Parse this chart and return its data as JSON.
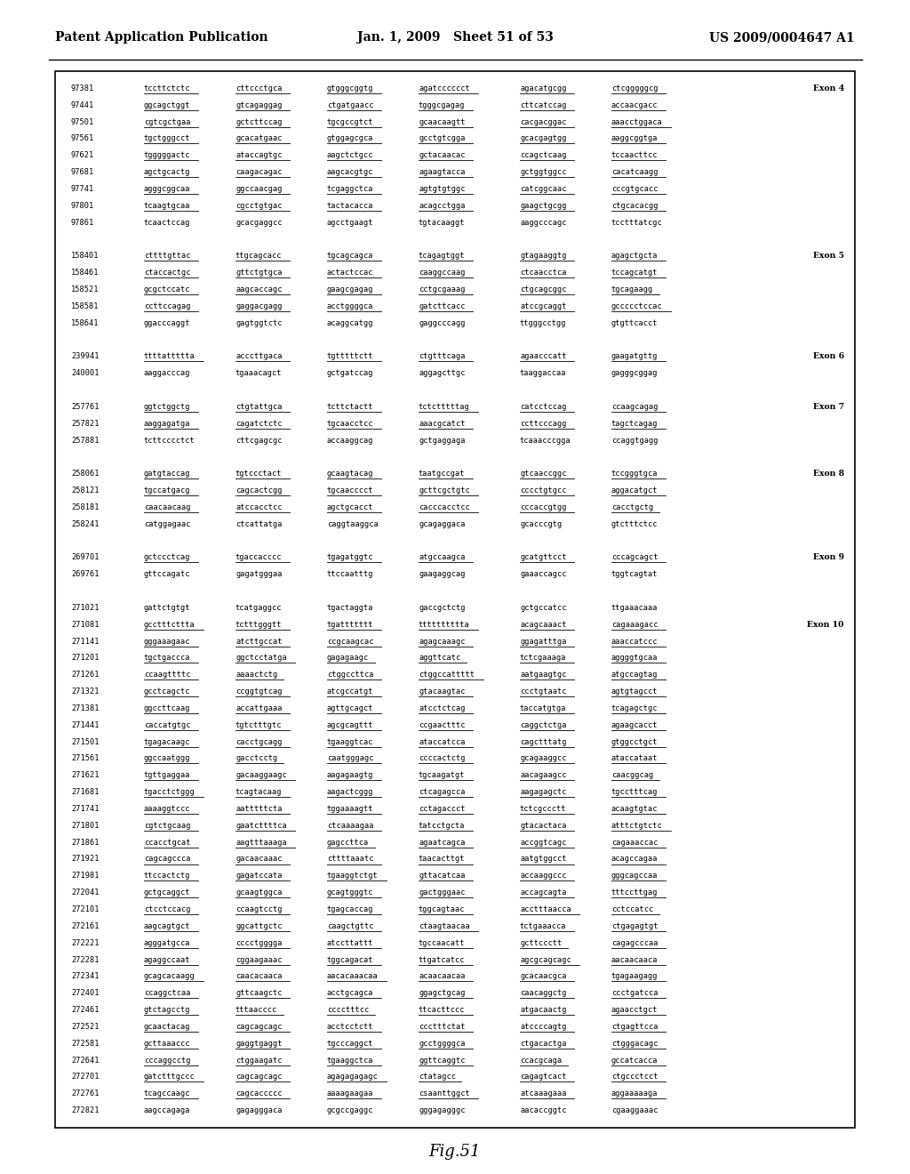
{
  "header_left": "Patent Application Publication",
  "header_center": "Jan. 1, 2009   Sheet 51 of 53",
  "header_right": "US 2009/0004647 A1",
  "footer": "Fig.51",
  "background_color": "#ffffff",
  "border_color": "#000000",
  "text_color": "#000000",
  "content_lines": [
    {
      "num": "97381",
      "seq1": "tccttctctc",
      "seq2": "cttccctgca",
      "seq3": "gtgggcggtg",
      "seq4": "agatcccccct",
      "seq5": "agacatgcgg",
      "seq6": "ctcgggggcg",
      "exon": "Exon 4",
      "underline": true
    },
    {
      "num": "97441",
      "seq1": "ggcagctggt",
      "seq2": "gtcagaggag",
      "seq3": "ctgatgaacc",
      "seq4": "tgggcgagag",
      "seq5": "cttcatccag",
      "seq6": "accaacgacc",
      "exon": "",
      "underline": true
    },
    {
      "num": "97501",
      "seq1": "cgtcgctgaa",
      "seq2": "gctcttccag",
      "seq3": "tgcgccgtct",
      "seq4": "gcaacaagtt",
      "seq5": "cacgacggac",
      "seq6": "aaacctggaca",
      "exon": "",
      "underline": true
    },
    {
      "num": "97561",
      "seq1": "tgctgggcct",
      "seq2": "gcacatgaac",
      "seq3": "gtggagcgca",
      "seq4": "gcctgtcgga",
      "seq5": "gcacgagtgg",
      "seq6": "aaggcggtga",
      "exon": "",
      "underline": true
    },
    {
      "num": "97621",
      "seq1": "tgggggactc",
      "seq2": "ataccagtgc",
      "seq3": "aagctctgcc",
      "seq4": "gctacaacac",
      "seq5": "ccagctcaag",
      "seq6": "tccaacttcc",
      "exon": "",
      "underline": true
    },
    {
      "num": "97681",
      "seq1": "agctgcactg",
      "seq2": "caagacagac",
      "seq3": "aagcacgtgc",
      "seq4": "agaagtacca",
      "seq5": "gctggtggcc",
      "seq6": "cacatcaagg",
      "exon": "",
      "underline": true
    },
    {
      "num": "97741",
      "seq1": "agggcggcaa",
      "seq2": "ggccaacgag",
      "seq3": "tcgaggctca",
      "seq4": "agtgtgtggc",
      "seq5": "catcggcaac",
      "seq6": "cccgtgcacc",
      "exon": "",
      "underline": true
    },
    {
      "num": "97801",
      "seq1": "tcaagtgcaa",
      "seq2": "cgcctgtgac",
      "seq3": "tactacacca",
      "seq4": "acagcctgga",
      "seq5": "gaagctgcgg",
      "seq6": "ctgcacacgg",
      "exon": "",
      "underline": true
    },
    {
      "num": "97861",
      "seq1": "tcaactccag",
      "seq2": "gcacgaggcc",
      "seq3": "agcctgaagt",
      "seq4": "tgtacaaggt",
      "seq5": "aaggcccagc",
      "seq6": "tcctttatcgc",
      "exon": "",
      "underline": false
    },
    {
      "num": "",
      "seq1": "",
      "seq2": "",
      "seq3": "",
      "seq4": "",
      "seq5": "",
      "seq6": "",
      "exon": "",
      "underline": false
    },
    {
      "num": "158401",
      "seq1": "cttttgttac",
      "seq2": "ttgcagcacc",
      "seq3": "tgcagcagca",
      "seq4": "tcagagtggt",
      "seq5": "gtagaaggtg",
      "seq6": "agagctgcta",
      "exon": "Exon 5",
      "underline": true
    },
    {
      "num": "158461",
      "seq1": "ctaccactgc",
      "seq2": "gttctgtgca",
      "seq3": "actactccac",
      "seq4": "caaggccaag",
      "seq5": "ctcaacctca",
      "seq6": "tccagcatgt",
      "exon": "",
      "underline": true
    },
    {
      "num": "158521",
      "seq1": "gcgctccatc",
      "seq2": "aagcaccagc",
      "seq3": "gaagcgagag",
      "seq4": "cctgcgaaag",
      "seq5": "ctgcagcggc",
      "seq6": "tgcagaagg",
      "exon": "",
      "underline": true
    },
    {
      "num": "158581",
      "seq1": "ccttccagag",
      "seq2": "gaggacgagg",
      "seq3": "acctggggca",
      "seq4": "gatcttcacc",
      "seq5": "atccgcaggt",
      "seq6": "gccccctccac",
      "exon": "",
      "underline": true
    },
    {
      "num": "158641",
      "seq1": "ggacccaggt",
      "seq2": "gagtggtctc",
      "seq3": "acaggcatgg",
      "seq4": "gaggcccagg",
      "seq5": "ttgggcctgg",
      "seq6": "gtgttcacct",
      "exon": "",
      "underline": false
    },
    {
      "num": "",
      "seq1": "",
      "seq2": "",
      "seq3": "",
      "seq4": "",
      "seq5": "",
      "seq6": "",
      "exon": "",
      "underline": false
    },
    {
      "num": "239941",
      "seq1": "ttttattttta",
      "seq2": "acccttgaca",
      "seq3": "tgtttttctt",
      "seq4": "ctgtttcaga",
      "seq5": "agaacccatt",
      "seq6": "gaagatgttg",
      "exon": "Exon 6",
      "underline": true
    },
    {
      "num": "240001",
      "seq1": "aaggacccag",
      "seq2": "tgaaacagct",
      "seq3": "gctgatccag",
      "seq4": "aggagcttgc",
      "seq5": "taaggaccaa",
      "seq6": "gagggcggag",
      "exon": "",
      "underline": false
    },
    {
      "num": "",
      "seq1": "",
      "seq2": "",
      "seq3": "",
      "seq4": "",
      "seq5": "",
      "seq6": "",
      "exon": "",
      "underline": false
    },
    {
      "num": "257761",
      "seq1": "ggtctggctg",
      "seq2": "ctgtattgca",
      "seq3": "tcttctactt",
      "seq4": "tctctttttag",
      "seq5": "catcctccag",
      "seq6": "ccaagcagag",
      "exon": "Exon 7",
      "underline": true
    },
    {
      "num": "257821",
      "seq1": "aaggagatga",
      "seq2": "cagatctctc",
      "seq3": "tgcaacctcc",
      "seq4": "aaacgcatct",
      "seq5": "ccttcccagg",
      "seq6": "tagctcagag",
      "exon": "",
      "underline": true
    },
    {
      "num": "257881",
      "seq1": "tcttcccctct",
      "seq2": "cttcgagcgc",
      "seq3": "accaaggcag",
      "seq4": "gctgaggaga",
      "seq5": "tcaaacccgga",
      "seq6": "ccaggtgagg",
      "exon": "",
      "underline": false
    },
    {
      "num": "",
      "seq1": "",
      "seq2": "",
      "seq3": "",
      "seq4": "",
      "seq5": "",
      "seq6": "",
      "exon": "",
      "underline": false
    },
    {
      "num": "258061",
      "seq1": "gatgtaccag",
      "seq2": "tgtccctact",
      "seq3": "gcaagtacag",
      "seq4": "taatgccgat",
      "seq5": "gtcaaccggc",
      "seq6": "tccgggtgca",
      "exon": "Exon 8",
      "underline": true
    },
    {
      "num": "258121",
      "seq1": "tgccatgacg",
      "seq2": "cagcactcgg",
      "seq3": "tgcaacccct",
      "seq4": "gcttcgctgtc",
      "seq5": "cccctgtgcc",
      "seq6": "aggacatgct",
      "exon": "",
      "underline": true
    },
    {
      "num": "258181",
      "seq1": "caacaacaag",
      "seq2": "atccacctcc",
      "seq3": "agctgcacct",
      "seq4": "cacccacctcc",
      "seq5": "cccaccgtgg",
      "seq6": "cacctgctg",
      "exon": "",
      "underline": true
    },
    {
      "num": "258241",
      "seq1": "catggagaac",
      "seq2": "ctcattatga",
      "seq3": "caggtaaggca",
      "seq4": "gcagaggaca",
      "seq5": "gcacccgtg",
      "seq6": "gtctttctcc",
      "exon": "",
      "underline": false
    },
    {
      "num": "",
      "seq1": "",
      "seq2": "",
      "seq3": "",
      "seq4": "",
      "seq5": "",
      "seq6": "",
      "exon": "",
      "underline": false
    },
    {
      "num": "269701",
      "seq1": "gctccctcag",
      "seq2": "tgaccacccc",
      "seq3": "tgagatggtc",
      "seq4": "atgccaagca",
      "seq5": "gcatgttcct",
      "seq6": "cccagcagct",
      "exon": "Exon 9",
      "underline": true
    },
    {
      "num": "269761",
      "seq1": "gttccagatc",
      "seq2": "gagatgggaa",
      "seq3": "ttccaatttg",
      "seq4": "gaagaggcag",
      "seq5": "gaaaccagcc",
      "seq6": "tggtcagtat",
      "exon": "",
      "underline": false
    },
    {
      "num": "",
      "seq1": "",
      "seq2": "",
      "seq3": "",
      "seq4": "",
      "seq5": "",
      "seq6": "",
      "exon": "",
      "underline": false
    },
    {
      "num": "271021",
      "seq1": "gattctgtgt",
      "seq2": "tcatgaggcc",
      "seq3": "tgactaggta",
      "seq4": "gaccgctctg",
      "seq5": "gctgccatcc",
      "seq6": "ttgaaacaaa",
      "exon": "",
      "underline": false
    },
    {
      "num": "271081",
      "seq1": "gcctttcttta",
      "seq2": "tctttgggtt",
      "seq3": "tgattttttt",
      "seq4": "tttttttttta",
      "seq5": "acagcaaact",
      "seq6": "cagaaagacc",
      "exon": "Exon 10",
      "underline": true
    },
    {
      "num": "271141",
      "seq1": "gggaaagaac",
      "seq2": "atcttgccat",
      "seq3": "ccgcaagcac",
      "seq4": "agagcaaagc",
      "seq5": "ggagatttga",
      "seq6": "aaaccatccc",
      "exon": "",
      "underline": true
    },
    {
      "num": "271201",
      "seq1": "tgctgaccca",
      "seq2": "ggctcctatga",
      "seq3": "gagagaagc",
      "seq4": "aggttcatc",
      "seq5": "tctcgaaaga",
      "seq6": "aggggtgcaa",
      "exon": "",
      "underline": true
    },
    {
      "num": "271261",
      "seq1": "ccaagttttc",
      "seq2": "aaaactctg",
      "seq3": "ctggccttca",
      "seq4": "ctggccattttt",
      "seq5": "aatgaagtgc",
      "seq6": "atgccagtag",
      "exon": "",
      "underline": true
    },
    {
      "num": "271321",
      "seq1": "gcctcagctc",
      "seq2": "ccggtgtcag",
      "seq3": "atcgccatgt",
      "seq4": "gtacaagtac",
      "seq5": "ccctgtaatc",
      "seq6": "agtgtagcct",
      "exon": "",
      "underline": true
    },
    {
      "num": "271381",
      "seq1": "ggccttcaag",
      "seq2": "accattgaaa",
      "seq3": "agttgcagct",
      "seq4": "atcctctcag",
      "seq5": "taccatgtga",
      "seq6": "tcagagctgc",
      "exon": "",
      "underline": true
    },
    {
      "num": "271441",
      "seq1": "caccatgtgc",
      "seq2": "tgtctttgtc",
      "seq3": "agcgcagttt",
      "seq4": "ccgaactttc",
      "seq5": "caggctctga",
      "seq6": "agaagcacct",
      "exon": "",
      "underline": true
    },
    {
      "num": "271501",
      "seq1": "tgagacaagc",
      "seq2": "cacctgcagg",
      "seq3": "tgaaggtcac",
      "seq4": "ataccatcca",
      "seq5": "cagctttatg",
      "seq6": "gtggcctgct",
      "exon": "",
      "underline": true
    },
    {
      "num": "271561",
      "seq1": "ggccaatggg",
      "seq2": "gacctcctg",
      "seq3": "caatgggagc",
      "seq4": "ccccactctg",
      "seq5": "gcagaaggcc",
      "seq6": "ataccataat",
      "exon": "",
      "underline": true
    },
    {
      "num": "271621",
      "seq1": "tgttgaggaa",
      "seq2": "gacaaggaagc",
      "seq3": "aagagaagtg",
      "seq4": "tgcaagatgt",
      "seq5": "aacagaagcc",
      "seq6": "caacggcag",
      "exon": "",
      "underline": true
    },
    {
      "num": "271681",
      "seq1": "tgacctctggg",
      "seq2": "tcagtacaag",
      "seq3": "aagactcggg",
      "seq4": "ctcagagcca",
      "seq5": "aagagagctc",
      "seq6": "tgcctttcag",
      "exon": "",
      "underline": true
    },
    {
      "num": "271741",
      "seq1": "aaaaggtccc",
      "seq2": "aatttttcta",
      "seq3": "tggaaaagtt",
      "seq4": "cctagaccct",
      "seq5": "tctcgccctt",
      "seq6": "acaagtgtac",
      "exon": "",
      "underline": true
    },
    {
      "num": "271801",
      "seq1": "cgtctgcaag",
      "seq2": "gaatcttttca",
      "seq3": "ctcaaaagaa",
      "seq4": "tatcctgcta",
      "seq5": "gtacactaca",
      "seq6": "atttctgtctc",
      "exon": "",
      "underline": true
    },
    {
      "num": "271861",
      "seq1": "ccacctgcat",
      "seq2": "aagtttaaaga",
      "seq3": "gagccttca",
      "seq4": "agaatcagca",
      "seq5": "accggtcagc",
      "seq6": "cagaaaccac",
      "exon": "",
      "underline": true
    },
    {
      "num": "271921",
      "seq1": "cagcagccca",
      "seq2": "gacaacaaac",
      "seq3": "cttttaaatc",
      "seq4": "taacacttgt",
      "seq5": "aatgtggcct",
      "seq6": "acagccagaa",
      "exon": "",
      "underline": true
    },
    {
      "num": "271981",
      "seq1": "ttccactctg",
      "seq2": "gagatccata",
      "seq3": "tgaaggtctgt",
      "seq4": "gttacatcaa",
      "seq5": "accaaggccc",
      "seq6": "gggcagccaa",
      "exon": "",
      "underline": true
    },
    {
      "num": "272041",
      "seq1": "gctgcaggct",
      "seq2": "gcaagtggca",
      "seq3": "gcagtgggtc",
      "seq4": "gactgggaac",
      "seq5": "accagcagta",
      "seq6": "tttccttgag",
      "exon": "",
      "underline": true
    },
    {
      "num": "272101",
      "seq1": "ctcctccacg",
      "seq2": "ccaagtcctg",
      "seq3": "tgagcaccag",
      "seq4": "tggcagtaac",
      "seq5": "acctttaacca",
      "seq6": "cctccatcc",
      "exon": "",
      "underline": true
    },
    {
      "num": "272161",
      "seq1": "aagcagtgct",
      "seq2": "ggcattgctc",
      "seq3": "caagctgttc",
      "seq4": "ctaagtaacaa",
      "seq5": "tctgaaacca",
      "seq6": "ctgagagtgt",
      "exon": "",
      "underline": true
    },
    {
      "num": "272221",
      "seq1": "agggatgcca",
      "seq2": "cccctgggga",
      "seq3": "atccttattt",
      "seq4": "tgccaacatt",
      "seq5": "gcttccctt",
      "seq6": "cagagcccaa",
      "exon": "",
      "underline": true
    },
    {
      "num": "272281",
      "seq1": "agaggccaat",
      "seq2": "cggaagaaac",
      "seq3": "tggcagacat",
      "seq4": "ttgatcatcc",
      "seq5": "agcgcagcagc",
      "seq6": "aacaacaaca",
      "exon": "",
      "underline": true
    },
    {
      "num": "272341",
      "seq1": "gcagcacaagg",
      "seq2": "caacacaaca",
      "seq3": "aacacaaacaa",
      "seq4": "acaacaacaa",
      "seq5": "gcacaacgca",
      "seq6": "tgagaagagg",
      "exon": "",
      "underline": true
    },
    {
      "num": "272401",
      "seq1": "ccaggctcaa",
      "seq2": "gttcaagctc",
      "seq3": "acctgcagca",
      "seq4": "ggagctgcag",
      "seq5": "caacaggctg",
      "seq6": "ccctgatcca",
      "exon": "",
      "underline": true
    },
    {
      "num": "272461",
      "seq1": "gtctagcctg",
      "seq2": "tttaacccc",
      "seq3": "cccctttcc",
      "seq4": "ttcacttccc",
      "seq5": "atgacaactg",
      "seq6": "agaacctgct",
      "exon": "",
      "underline": true
    },
    {
      "num": "272521",
      "seq1": "gcaactacag",
      "seq2": "cagcagcagc",
      "seq3": "acctcctctt",
      "seq4": "ccctttctat",
      "seq5": "atccccagtg",
      "seq6": "ctgagttcca",
      "exon": "",
      "underline": true
    },
    {
      "num": "272581",
      "seq1": "gcttaaaccc",
      "seq2": "gaggtgaggt",
      "seq3": "tgcccaggct",
      "seq4": "gcctggggca",
      "seq5": "ctgacactga",
      "seq6": "ctgggacagc",
      "exon": "",
      "underline": true
    },
    {
      "num": "272641",
      "seq1": "cccaggcctg",
      "seq2": "ctggaagatc",
      "seq3": "tgaaggctca",
      "seq4": "ggttcaggtc",
      "seq5": "ccacgcaga",
      "seq6": "gccatcacca",
      "exon": "",
      "underline": true
    },
    {
      "num": "272701",
      "seq1": "gatctttgccc",
      "seq2": "cagcagcagc",
      "seq3": "agagagagagc",
      "seq4": "ctatagcc",
      "seq5": "cagagtcact",
      "seq6": "ctgccctcct",
      "exon": "",
      "underline": true
    },
    {
      "num": "272761",
      "seq1": "tcagccaagc",
      "seq2": "cagcaccccc",
      "seq3": "aaaagaagaa",
      "seq4": "csaanttggct",
      "seq5": "atcaaagaaa",
      "seq6": "aggaaaaaga",
      "exon": "",
      "underline": true
    },
    {
      "num": "272821",
      "seq1": "aagccagaga",
      "seq2": "gagagggaca",
      "seq3": "gcgccgaggc",
      "seq4": "gggagagggc",
      "seq5": "aacaccggtc",
      "seq6": "cgaaggaaac",
      "exon": "",
      "underline": false
    }
  ]
}
